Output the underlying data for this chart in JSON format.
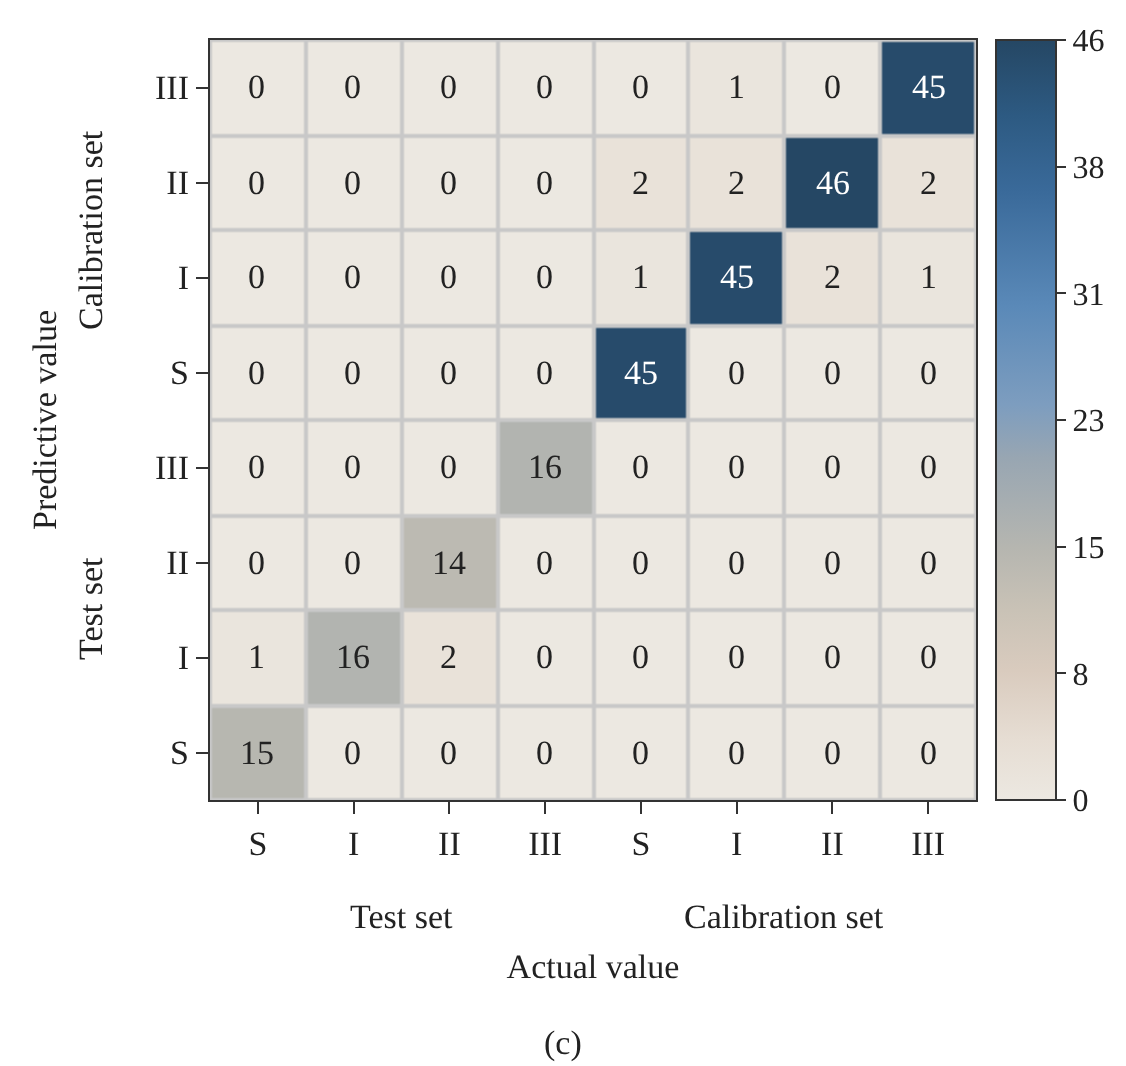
{
  "chart_data": {
    "type": "heatmap",
    "categories": [
      "S",
      "I",
      "II",
      "III",
      "S",
      "I",
      "II",
      "III"
    ],
    "y_categories": [
      "III",
      "II",
      "I",
      "S",
      "III",
      "II",
      "I",
      "S"
    ],
    "cells": [
      [
        0,
        0,
        0,
        0,
        0,
        1,
        0,
        45
      ],
      [
        0,
        0,
        0,
        0,
        2,
        2,
        46,
        2
      ],
      [
        0,
        0,
        0,
        0,
        1,
        45,
        2,
        1
      ],
      [
        0,
        0,
        0,
        0,
        45,
        0,
        0,
        0
      ],
      [
        0,
        0,
        0,
        16,
        0,
        0,
        0,
        0
      ],
      [
        0,
        0,
        14,
        0,
        0,
        0,
        0,
        0
      ],
      [
        1,
        16,
        2,
        0,
        0,
        0,
        0,
        0
      ],
      [
        15,
        0,
        0,
        0,
        0,
        0,
        0,
        0
      ]
    ],
    "xlabel": "Actual value",
    "ylabel": "Predictive value",
    "annotations": [
      "Calibration set",
      "Test set",
      "Test set",
      "Calibration set",
      "(c)"
    ],
    "clim": [
      0,
      46
    ],
    "cticks": [
      0,
      {
        "value": 7.667,
        "label": "8"
      },
      {
        "value": 15.333,
        "label": "15"
      },
      23,
      {
        "value": 30.667,
        "label": "31"
      },
      {
        "value": 38.333,
        "label": "38"
      },
      46
    ],
    "data_labels": true
  }
}
